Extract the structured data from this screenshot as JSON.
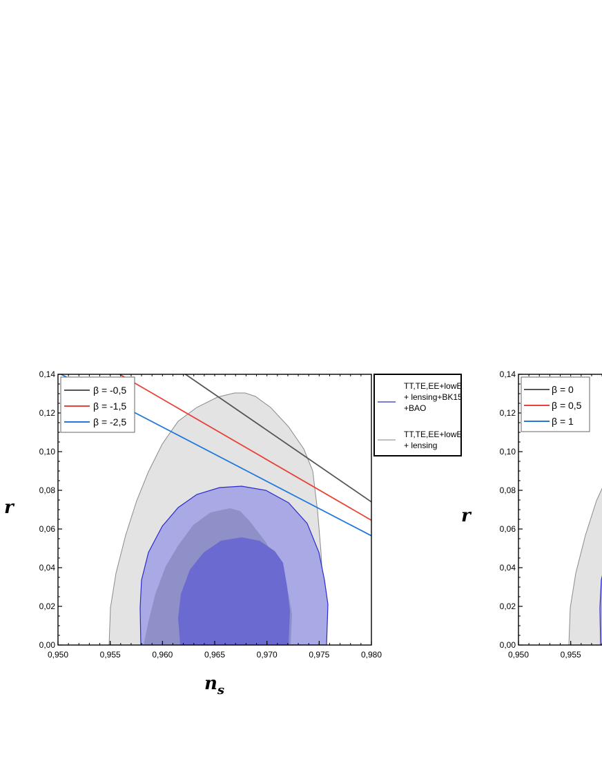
{
  "chart_data": [
    {
      "type": "line",
      "xlabel": "n",
      "xlabel_sub": "s",
      "ylabel": "r",
      "xlim": [
        0.95,
        0.98
      ],
      "ylim": [
        0.0,
        0.14
      ],
      "x_ticks": [
        "0,950",
        "0,955",
        "0,960",
        "0,965",
        "0,970",
        "0,975",
        "0,980"
      ],
      "y_ticks": [
        "0,00",
        "0,02",
        "0,04",
        "0,06",
        "0,08",
        "0,10",
        "0,12",
        "0,14"
      ],
      "series": [
        {
          "name": "β = -0,5",
          "color": "#555555",
          "x": [
            0.9622,
            0.98
          ],
          "y": [
            0.14,
            0.074
          ]
        },
        {
          "name": "β = -1,5",
          "color": "#e8403a",
          "x": [
            0.9559,
            0.98
          ],
          "y": [
            0.14,
            0.0645
          ]
        },
        {
          "name": "β = -2,5",
          "color": "#2277dd",
          "x": [
            0.9503,
            0.98
          ],
          "y": [
            0.14,
            0.0565
          ]
        }
      ],
      "legend_placement": "top-left",
      "contour_legend": [
        {
          "label_lines": [
            "TT,TE,EE+lowE",
            "+ lensing+BK15",
            "+BAO"
          ],
          "color": "#2a2acc"
        },
        {
          "label_lines": [
            "TT,TE,EE+lowE",
            "+ lensing"
          ],
          "color": "#999999"
        }
      ],
      "contour_legend_placement": "outside-right"
    },
    {
      "type": "line",
      "ylabel": "r",
      "xlim": [
        0.95,
        0.98
      ],
      "ylim": [
        0.0,
        0.14
      ],
      "x_ticks": [
        "0,950",
        "0,955"
      ],
      "y_ticks": [
        "0,00",
        "0,02",
        "0,04",
        "0,06",
        "0,08",
        "0,10",
        "0,12",
        "0,14"
      ],
      "series": [
        {
          "name": "β = 0",
          "color": "#555555"
        },
        {
          "name": "β = 0,5",
          "color": "#e8403a"
        },
        {
          "name": "β = 1",
          "color": "#2277dd"
        }
      ],
      "legend_placement": "top-left"
    }
  ]
}
